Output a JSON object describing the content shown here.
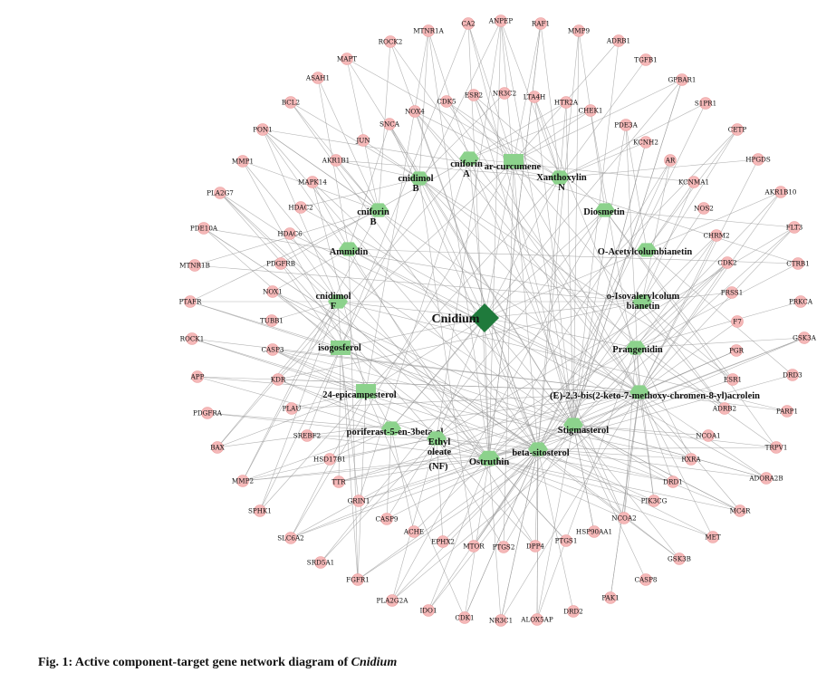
{
  "figure": {
    "caption_prefix": "Fig. 1: Active component-target gene network diagram of ",
    "caption_species": "Cnidium",
    "hub": "Cnidium",
    "colors": {
      "gene": "#f5b8b8",
      "component": "#8cd28c",
      "hub": "#1f7a3c",
      "edge": "#9a9a9a"
    }
  },
  "genes": [
    "CA2",
    "ANPEP",
    "RAF1",
    "MMP9",
    "ADRB1",
    "TGFB1",
    "GPBAR1",
    "S1PR1",
    "CETP",
    "HPGDS",
    "AKR1B10",
    "FLT3",
    "CTRB1",
    "PRKCA",
    "GSK3A",
    "DRD3",
    "PARP1",
    "TRPV1",
    "ADORA2B",
    "MC4R",
    "MET",
    "GSK3B",
    "CASP8",
    "PAK1",
    "DRD2",
    "ALOX5AP",
    "NR3C1",
    "CDK1",
    "IDO1",
    "PLA2G2A",
    "FGFR1",
    "SRD5A1",
    "SLC6A2",
    "SPHK1",
    "MMP2",
    "BAX",
    "PDGFRA",
    "APP",
    "ROCK1",
    "PTAFR",
    "MTNR1B",
    "PDE10A",
    "PLA2G7",
    "MMP1",
    "PON1",
    "BCL2",
    "ASAH1",
    "MAPT",
    "ROCK2",
    "MTNR1A",
    "ESR2",
    "NR3C2",
    "LTA4H",
    "HTR2A",
    "CHEK1",
    "CDK5",
    "NOX4",
    "PDE3A",
    "KCNH2",
    "SNCA",
    "JUN",
    "AR",
    "KCNMA1",
    "AKR1B1",
    "NOS2",
    "MAPK14",
    "HDAC2",
    "CHRM2",
    "HDAC6",
    "CDK2",
    "PDGFRB",
    "PRSS1",
    "NOX1",
    "F7",
    "TUBB1",
    "PGR",
    "CASP3",
    "ESR1",
    "KDR",
    "ADRB2",
    "PLAU",
    "NCOA1",
    "SREBF2",
    "RXRA",
    "HSD17B1",
    "DRD1",
    "TTR",
    "PIK3CG",
    "GRIN1",
    "NCOA2",
    "CASP9",
    "HSP90AA1",
    "ACHE",
    "PTGS1",
    "EPHX2",
    "DPP4",
    "MTOR",
    "PTGS2"
  ],
  "components": [
    {
      "line1": "cniforin",
      "line2": "A"
    },
    {
      "line1": "ar-curcumene",
      "line2": ""
    },
    {
      "line1": "cnidimol",
      "line2": "B"
    },
    {
      "line1": "Xanthoxylin",
      "line2": "N"
    },
    {
      "line1": "cniforin",
      "line2": "B"
    },
    {
      "line1": "Diosmetin",
      "line2": ""
    },
    {
      "line1": "Ammidin",
      "line2": ""
    },
    {
      "line1": "O-Acetylcolumbianetin",
      "line2": ""
    },
    {
      "line1": "cnidimol",
      "line2": "F"
    },
    {
      "line1": "o-Isovalerylcolum",
      "line2": "bianetin"
    },
    {
      "line1": "isogosferol",
      "line2": ""
    },
    {
      "line1": "Prangenidin",
      "line2": ""
    },
    {
      "line1": "24-epicampesterol",
      "line2": ""
    },
    {
      "line1": "(E)-2,3-bis(2-keto-7-methoxy-chromen-8-yl)acrolein",
      "line2": ""
    },
    {
      "line1": "poriferast-5-en-3beta-ol",
      "line2": ""
    },
    {
      "line1": "Stigmasterol",
      "line2": ""
    },
    {
      "line1": "Ethyl",
      "line2": "oleate"
    },
    {
      "line1": "beta-sitosterol",
      "line2": ""
    },
    {
      "line1": "Ostruthin",
      "line2": ""
    },
    {
      "line1": "(NF)",
      "line2": ""
    }
  ]
}
